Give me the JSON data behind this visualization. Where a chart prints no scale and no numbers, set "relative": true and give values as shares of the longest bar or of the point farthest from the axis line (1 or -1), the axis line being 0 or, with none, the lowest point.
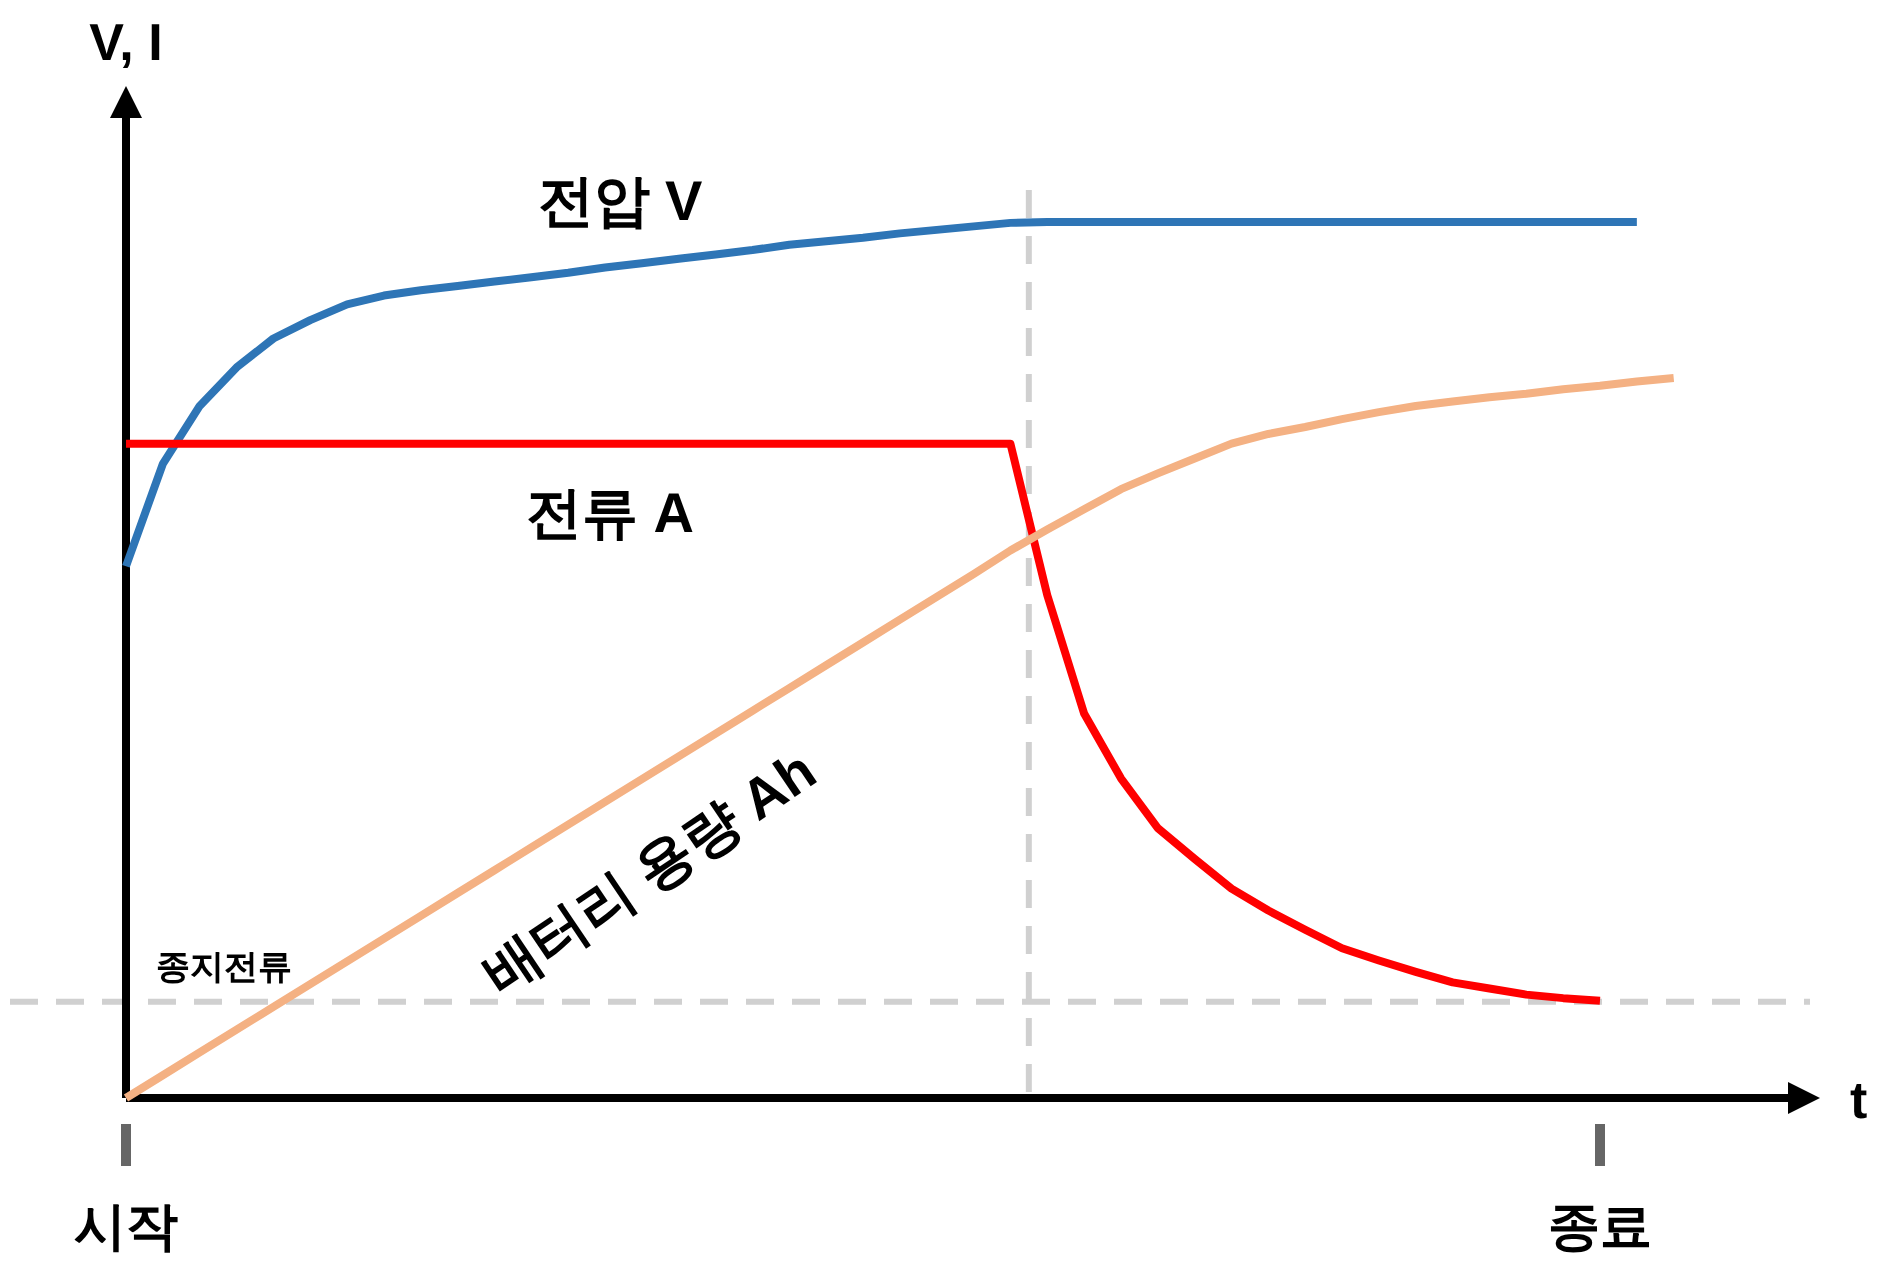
{
  "chart_data": {
    "type": "line",
    "relative": true,
    "xlabel": "t",
    "ylabel": "V, I",
    "categories": [
      "시작",
      null,
      null,
      null,
      null,
      null,
      null,
      null,
      null,
      null,
      null,
      null,
      null,
      null,
      null,
      null,
      null,
      null,
      null,
      null,
      null,
      null,
      null,
      null,
      null,
      null,
      null,
      null,
      null,
      null,
      null,
      null,
      null,
      null,
      null,
      null,
      null,
      null,
      null,
      null,
      "종료",
      null,
      null
    ],
    "ref_lines": [
      {
        "axis": "y",
        "value": 0.11,
        "label": "종지전류",
        "color": "#d0d0d0",
        "line_style": "dashed"
      }
    ],
    "series": [
      {
        "name": "전압 V",
        "color": "#2e75b6",
        "values": [
          0.607,
          0.724,
          0.79,
          0.834,
          0.867,
          0.888,
          0.906,
          0.916,
          0.922,
          0.927,
          0.932,
          0.937,
          0.942,
          0.948,
          0.953,
          0.958,
          0.963,
          0.968,
          0.974,
          0.978,
          0.982,
          0.987,
          0.991,
          0.995,
          0.999,
          1,
          1,
          1,
          1,
          1,
          1,
          1,
          1,
          1,
          1,
          1,
          1,
          1,
          1,
          1,
          1,
          1,
          null
        ]
      },
      {
        "name": "전류 A",
        "color": "#ff0000",
        "values": [
          0.747,
          0.747,
          0.747,
          0.747,
          0.747,
          0.747,
          0.747,
          0.747,
          0.747,
          0.747,
          0.747,
          0.747,
          0.747,
          0.747,
          0.747,
          0.747,
          0.747,
          0.747,
          0.747,
          0.747,
          0.747,
          0.747,
          0.747,
          0.747,
          0.747,
          0.574,
          0.439,
          0.365,
          0.308,
          0.273,
          0.239,
          0.214,
          0.192,
          0.171,
          0.157,
          0.144,
          0.132,
          0.125,
          0.118,
          0.114,
          0.111,
          null,
          null
        ]
      },
      {
        "name": "배터리 용량 Ah",
        "color": "#f4b183",
        "values": [
          0,
          0.026,
          0.052,
          0.078,
          0.104,
          0.13,
          0.156,
          0.182,
          0.208,
          0.234,
          0.26,
          0.286,
          0.312,
          0.338,
          0.364,
          0.39,
          0.416,
          0.442,
          0.468,
          0.494,
          0.52,
          0.546,
          0.572,
          0.598,
          0.625,
          0.649,
          0.672,
          0.695,
          0.713,
          0.73,
          0.747,
          0.758,
          0.766,
          0.775,
          0.783,
          0.79,
          0.795,
          0.8,
          0.804,
          0.809,
          0.813,
          0.818,
          0.822
        ]
      }
    ]
  }
}
